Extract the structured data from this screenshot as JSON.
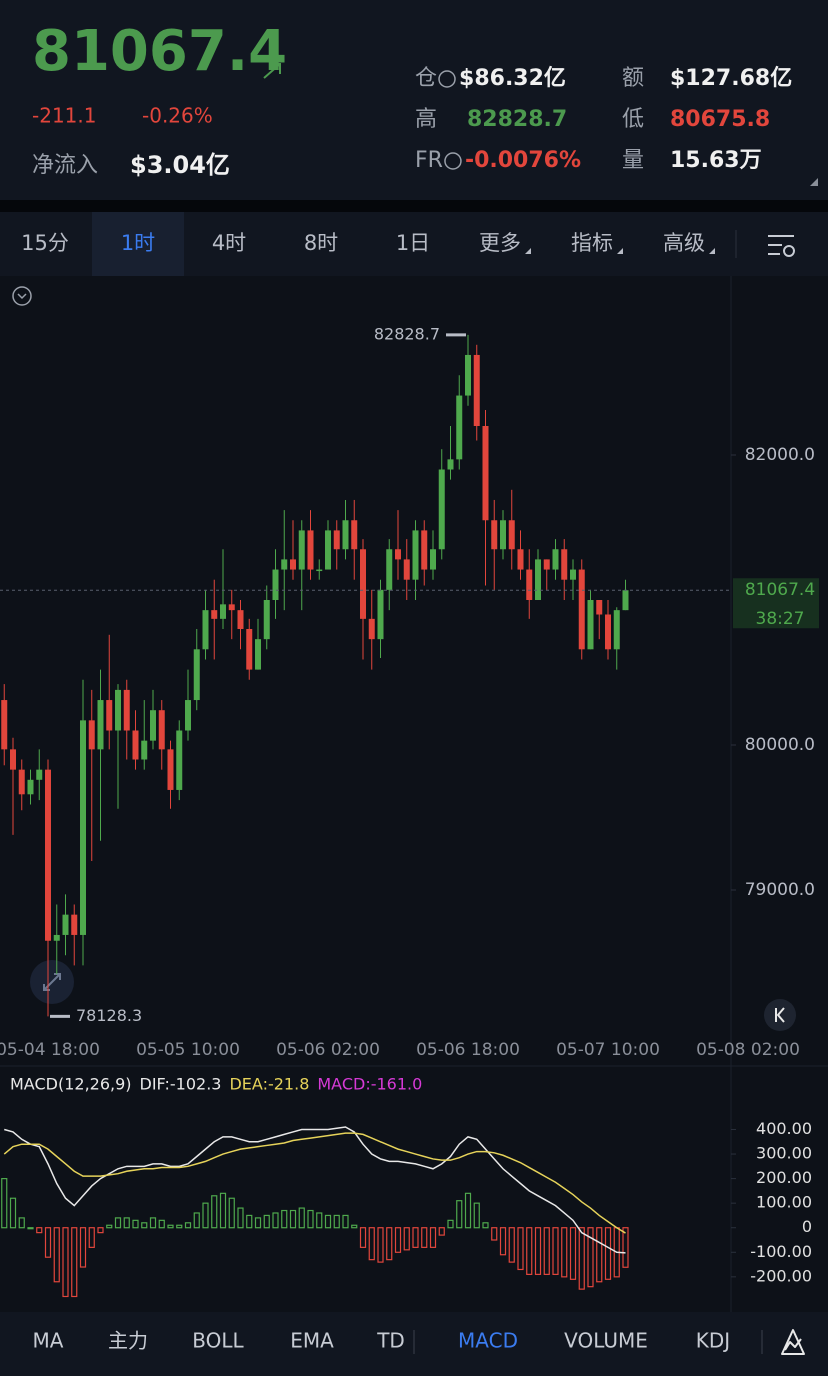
{
  "header": {
    "price": "81067.4",
    "change": "-211.1",
    "change_pct": "-0.26%",
    "inflow_label": "净流入",
    "inflow_value": "$3.04亿",
    "stats": [
      {
        "label": "仓",
        "value": "$86.32亿"
      },
      {
        "label": "额",
        "value": "$127.68亿"
      },
      {
        "label": "高",
        "value": "82828.7"
      },
      {
        "label": "低",
        "value": "80675.8"
      },
      {
        "label": "FR",
        "value": "-0.0076%"
      },
      {
        "label": "量",
        "value": "15.63万"
      }
    ]
  },
  "tabs": [
    "15分",
    "1时",
    "4时",
    "8时",
    "1日",
    "更多",
    "指标",
    "高级"
  ],
  "indicators": [
    "MA",
    "主力",
    "BOLL",
    "EMA",
    "TD",
    "MACD",
    "VOLUME",
    "KDJ"
  ],
  "chart_data": [
    {
      "type": "candlestick",
      "up_color": "#4fa94d",
      "down_color": "#e2463c",
      "countdown": "38:27",
      "categories": [
        null,
        null,
        null,
        null,
        null,
        "05-04 18:00",
        null,
        null,
        null,
        null,
        null,
        null,
        null,
        null,
        null,
        null,
        null,
        null,
        null,
        null,
        null,
        "05-05 10:00",
        null,
        null,
        null,
        null,
        null,
        null,
        null,
        null,
        null,
        null,
        null,
        null,
        null,
        null,
        null,
        "05-06 02:00",
        null,
        null,
        null,
        null,
        null,
        null,
        null,
        null,
        null,
        null,
        null,
        null,
        null,
        null,
        null,
        "05-06 18:00",
        null,
        null,
        null,
        null,
        null,
        null,
        null,
        null,
        null,
        null,
        null,
        null,
        null,
        null,
        null,
        "05-07 10:00",
        null,
        null,
        null,
        null,
        null,
        null,
        null,
        null,
        null,
        null,
        null,
        null,
        null,
        null,
        null,
        "05-08 02:00"
      ],
      "open": [
        80310,
        79970,
        79830,
        79660,
        79760,
        79830,
        78650,
        78690,
        78830,
        78690,
        80170,
        79970,
        80310,
        80100,
        80380,
        80100,
        79900,
        80030,
        80240,
        79970,
        79690,
        80100,
        80310,
        80660,
        80930,
        80870,
        80970,
        80930,
        80800,
        80520,
        80730,
        81000,
        81210,
        81280,
        81210,
        81480,
        81210,
        81210,
        81480,
        81350,
        81550,
        81350,
        80870,
        80730,
        81070,
        81350,
        81280,
        81140,
        81480,
        81210,
        81350,
        81900,
        81970,
        82410,
        82690,
        82200,
        81550,
        81350,
        81550,
        81350,
        81210,
        81000,
        81280,
        81210,
        81350,
        81140,
        81210,
        80660,
        81000,
        80900,
        80660,
        80930,
        null,
        null,
        null,
        null,
        null,
        null,
        null,
        null,
        null,
        null,
        null,
        null,
        null,
        null
      ],
      "high": [
        80420,
        80050,
        79900,
        79830,
        79970,
        79900,
        78900,
        78970,
        78900,
        80450,
        80380,
        80520,
        80760,
        80420,
        80450,
        80240,
        80310,
        80380,
        80310,
        80030,
        80170,
        80520,
        80800,
        81070,
        81140,
        81350,
        81070,
        81000,
        80870,
        80870,
        81100,
        81350,
        81620,
        81550,
        81550,
        81620,
        81280,
        81550,
        81550,
        81690,
        81690,
        81420,
        81070,
        81140,
        81420,
        81620,
        81420,
        81550,
        81550,
        81480,
        82040,
        82200,
        82550,
        82828.7,
        82760,
        82310,
        81690,
        81620,
        81760,
        81480,
        81350,
        81350,
        81280,
        81420,
        81420,
        81280,
        81280,
        81070,
        81000,
        81000,
        80950,
        81140,
        null,
        null,
        null,
        null,
        null,
        null,
        null,
        null,
        null,
        null,
        null,
        null,
        null,
        null
      ],
      "low": [
        79860,
        79380,
        79550,
        79590,
        79620,
        78128.3,
        78420,
        78550,
        78480,
        78480,
        79200,
        79340,
        79970,
        79560,
        79900,
        79830,
        79830,
        79970,
        79830,
        79560,
        79620,
        80030,
        80240,
        80590,
        80590,
        80800,
        80730,
        80660,
        80450,
        80520,
        80660,
        80870,
        80930,
        81140,
        80930,
        81140,
        81140,
        81210,
        81210,
        81280,
        81140,
        80590,
        80520,
        80600,
        80930,
        81140,
        81000,
        81000,
        81100,
        81140,
        81280,
        81830,
        81900,
        82340,
        82100,
        81100,
        81070,
        81280,
        81210,
        81140,
        80870,
        81000,
        81070,
        81140,
        81000,
        81000,
        80590,
        80660,
        80730,
        80590,
        80520,
        80930,
        null,
        null,
        null,
        null,
        null,
        null,
        null,
        null,
        null,
        null,
        null,
        null,
        null,
        null
      ],
      "close": [
        79970,
        79830,
        79660,
        79760,
        79830,
        78650,
        78690,
        78830,
        78690,
        80170,
        79970,
        80310,
        80100,
        80380,
        80100,
        79900,
        80030,
        80240,
        79970,
        79690,
        80100,
        80310,
        80660,
        80930,
        80870,
        80970,
        80930,
        80800,
        80520,
        80730,
        81000,
        81210,
        81280,
        81210,
        81480,
        81210,
        81210,
        81480,
        81350,
        81550,
        81350,
        80870,
        80730,
        81070,
        81350,
        81280,
        81140,
        81480,
        81210,
        81350,
        81900,
        81970,
        82410,
        82690,
        82200,
        81550,
        81350,
        81550,
        81350,
        81210,
        81000,
        81280,
        81210,
        81350,
        81140,
        81210,
        80660,
        81000,
        80900,
        80660,
        80930,
        81067.4,
        null,
        null,
        null,
        null,
        null,
        null,
        null,
        null,
        null,
        null,
        null,
        null,
        null,
        null
      ],
      "ylim": [
        78000,
        83200
      ],
      "yticks": [
        {
          "value": 79000,
          "label": "79000.0"
        },
        {
          "value": 80000,
          "label": "80000.0"
        },
        {
          "value": 82000,
          "label": "82000.0"
        }
      ]
    },
    {
      "type": "macd",
      "title": "MACD(12,26,9)",
      "legend_labels": [
        "DIF:-102.3",
        "DEA:-21.8",
        "MACD:-161.0"
      ],
      "dif_color": "#e8e8e8",
      "dea_color": "#e6d35a",
      "macd_color": "#d63ad6",
      "up_color": "#4fa94d",
      "down_color": "#e2463c",
      "dif": [
        400,
        390,
        360,
        340,
        330,
        260,
        180,
        120,
        90,
        130,
        170,
        200,
        220,
        240,
        250,
        250,
        250,
        260,
        260,
        250,
        250,
        260,
        290,
        320,
        350,
        370,
        370,
        360,
        350,
        350,
        360,
        370,
        380,
        390,
        400,
        400,
        400,
        400,
        405,
        410,
        390,
        340,
        300,
        280,
        270,
        270,
        265,
        260,
        250,
        240,
        260,
        290,
        340,
        370,
        360,
        320,
        280,
        240,
        210,
        180,
        150,
        130,
        110,
        90,
        60,
        30,
        -20,
        -40,
        -60,
        -80,
        -100,
        -102.3
      ],
      "dea": [
        300,
        330,
        340,
        340,
        340,
        320,
        290,
        260,
        230,
        210,
        210,
        210,
        215,
        220,
        230,
        235,
        240,
        240,
        245,
        245,
        245,
        250,
        260,
        270,
        285,
        300,
        310,
        320,
        325,
        330,
        335,
        340,
        345,
        355,
        360,
        365,
        370,
        375,
        380,
        385,
        385,
        380,
        365,
        350,
        335,
        320,
        310,
        300,
        290,
        280,
        275,
        275,
        285,
        300,
        310,
        310,
        305,
        295,
        280,
        265,
        245,
        225,
        205,
        185,
        160,
        135,
        105,
        80,
        50,
        25,
        0,
        -21.8
      ],
      "macd": [
        200,
        120,
        40,
        0,
        -20,
        -120,
        -220,
        -280,
        -280,
        -160,
        -80,
        -20,
        10,
        40,
        40,
        30,
        20,
        40,
        30,
        10,
        10,
        20,
        60,
        100,
        130,
        140,
        120,
        80,
        50,
        40,
        50,
        60,
        70,
        70,
        80,
        70,
        60,
        50,
        50,
        50,
        10,
        -80,
        -130,
        -140,
        -130,
        -100,
        -90,
        -80,
        -80,
        -80,
        -30,
        30,
        110,
        140,
        100,
        20,
        -50,
        -110,
        -140,
        -170,
        -190,
        -190,
        -190,
        -190,
        -200,
        -210,
        -250,
        -240,
        -220,
        -210,
        -200,
        -161.0
      ],
      "ylim": [
        -335,
        520
      ],
      "yticks": [
        {
          "value": 400,
          "label": "400.00"
        },
        {
          "value": 300,
          "label": "300.00"
        },
        {
          "value": 200,
          "label": "200.00"
        },
        {
          "value": 100,
          "label": "100.00"
        },
        0,
        {
          "value": -100,
          "label": "-100.00"
        },
        {
          "value": -200,
          "label": "-200.00"
        }
      ]
    }
  ]
}
